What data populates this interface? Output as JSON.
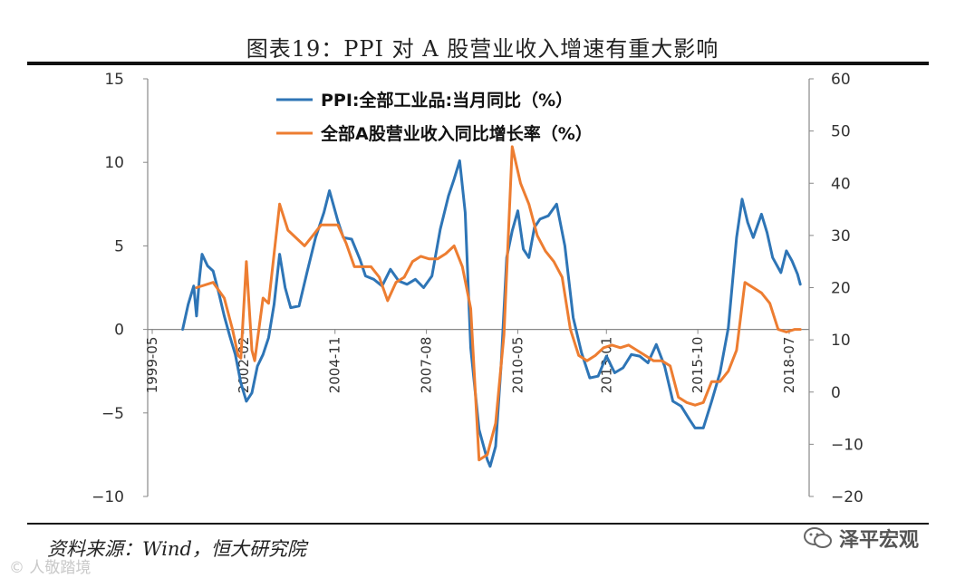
{
  "title": "图表19：PPI 对 A 股营业收入增速有重大影响",
  "source": "资料来源：Wind，恒大研究院",
  "watermark_left": "© 人敬踏境",
  "watermark_right": "泽平宏观",
  "watermark_icon": "wechat-icon",
  "chart_data": {
    "type": "line",
    "legend_position": "top-left",
    "y_left": {
      "min": -10,
      "max": 15,
      "ticks": [
        -10,
        -5,
        0,
        5,
        10,
        15
      ]
    },
    "y_right": {
      "min": -20,
      "max": 60,
      "ticks": [
        -20,
        -10,
        0,
        10,
        20,
        30,
        40,
        50,
        60
      ]
    },
    "x_ticks": [
      "1999-05",
      "2002-02",
      "2004-11",
      "2007-08",
      "2010-05",
      "2013-01",
      "2015-10",
      "2018-07"
    ],
    "series": [
      {
        "name": "PPI:全部工业品:当月同比（%）",
        "axis": "left",
        "color": "#2e75b6",
        "points": [
          [
            "2000-04",
            0.0
          ],
          [
            "2000-06",
            1.5
          ],
          [
            "2000-08",
            2.6
          ],
          [
            "2000-09",
            0.8
          ],
          [
            "2000-10",
            3.0
          ],
          [
            "2000-11",
            4.5
          ],
          [
            "2001-01",
            3.8
          ],
          [
            "2001-03",
            3.5
          ],
          [
            "2001-05",
            2.2
          ],
          [
            "2001-07",
            0.8
          ],
          [
            "2001-09",
            -0.4
          ],
          [
            "2001-11",
            -1.5
          ],
          [
            "2002-01",
            -3.2
          ],
          [
            "2002-03",
            -4.3
          ],
          [
            "2002-05",
            -3.8
          ],
          [
            "2002-07",
            -2.2
          ],
          [
            "2002-09",
            -1.5
          ],
          [
            "2002-11",
            -0.5
          ],
          [
            "2003-01",
            1.5
          ],
          [
            "2003-03",
            4.5
          ],
          [
            "2003-05",
            2.5
          ],
          [
            "2003-07",
            1.3
          ],
          [
            "2003-10",
            1.4
          ],
          [
            "2004-01",
            3.5
          ],
          [
            "2004-04",
            5.5
          ],
          [
            "2004-07",
            7.0
          ],
          [
            "2004-09",
            8.3
          ],
          [
            "2004-12",
            6.5
          ],
          [
            "2005-02",
            5.5
          ],
          [
            "2005-05",
            5.4
          ],
          [
            "2005-08",
            4.2
          ],
          [
            "2005-10",
            3.2
          ],
          [
            "2006-01",
            3.0
          ],
          [
            "2006-04",
            2.6
          ],
          [
            "2006-07",
            3.6
          ],
          [
            "2006-10",
            2.9
          ],
          [
            "2007-01",
            2.7
          ],
          [
            "2007-04",
            3.0
          ],
          [
            "2007-07",
            2.5
          ],
          [
            "2007-10",
            3.2
          ],
          [
            "2008-01",
            6.0
          ],
          [
            "2008-04",
            8.0
          ],
          [
            "2008-06",
            9.0
          ],
          [
            "2008-08",
            10.1
          ],
          [
            "2008-10",
            7.0
          ],
          [
            "2008-12",
            -1.1
          ],
          [
            "2009-03",
            -6.0
          ],
          [
            "2009-06",
            -7.8
          ],
          [
            "2009-07",
            -8.2
          ],
          [
            "2009-09",
            -7.0
          ],
          [
            "2009-11",
            -2.1
          ],
          [
            "2010-01",
            4.3
          ],
          [
            "2010-03",
            5.9
          ],
          [
            "2010-05",
            7.1
          ],
          [
            "2010-07",
            4.8
          ],
          [
            "2010-09",
            4.3
          ],
          [
            "2010-11",
            6.1
          ],
          [
            "2011-01",
            6.6
          ],
          [
            "2011-04",
            6.8
          ],
          [
            "2011-07",
            7.5
          ],
          [
            "2011-10",
            5.0
          ],
          [
            "2012-01",
            0.7
          ],
          [
            "2012-04",
            -1.4
          ],
          [
            "2012-07",
            -2.9
          ],
          [
            "2012-10",
            -2.8
          ],
          [
            "2013-01",
            -1.6
          ],
          [
            "2013-04",
            -2.6
          ],
          [
            "2013-07",
            -2.3
          ],
          [
            "2013-10",
            -1.5
          ],
          [
            "2014-01",
            -1.6
          ],
          [
            "2014-04",
            -2.0
          ],
          [
            "2014-07",
            -0.9
          ],
          [
            "2014-10",
            -2.2
          ],
          [
            "2015-01",
            -4.3
          ],
          [
            "2015-04",
            -4.6
          ],
          [
            "2015-07",
            -5.4
          ],
          [
            "2015-09",
            -5.9
          ],
          [
            "2015-12",
            -5.9
          ],
          [
            "2016-03",
            -4.3
          ],
          [
            "2016-06",
            -2.6
          ],
          [
            "2016-09",
            0.1
          ],
          [
            "2016-12",
            5.5
          ],
          [
            "2017-02",
            7.8
          ],
          [
            "2017-04",
            6.4
          ],
          [
            "2017-06",
            5.5
          ],
          [
            "2017-09",
            6.9
          ],
          [
            "2017-11",
            5.8
          ],
          [
            "2018-01",
            4.3
          ],
          [
            "2018-04",
            3.4
          ],
          [
            "2018-06",
            4.7
          ],
          [
            "2018-08",
            4.1
          ],
          [
            "2018-10",
            3.3
          ],
          [
            "2018-11",
            2.7
          ]
        ]
      },
      {
        "name": "全部A股营业收入同比增长率（%）",
        "axis": "right",
        "color": "#ed7d31",
        "points": [
          [
            "2000-09",
            20.0
          ],
          [
            "2001-03",
            21.0
          ],
          [
            "2001-07",
            18.0
          ],
          [
            "2001-10",
            12.0
          ],
          [
            "2001-12",
            7.0
          ],
          [
            "2002-01",
            6.5
          ],
          [
            "2002-03",
            25.0
          ],
          [
            "2002-05",
            8.0
          ],
          [
            "2002-06",
            6.0
          ],
          [
            "2002-09",
            18.0
          ],
          [
            "2002-11",
            17.0
          ],
          [
            "2003-03",
            36.0
          ],
          [
            "2003-06",
            31.0
          ],
          [
            "2003-12",
            28.0
          ],
          [
            "2004-03",
            30.0
          ],
          [
            "2004-06",
            32.0
          ],
          [
            "2004-12",
            32.0
          ],
          [
            "2005-03",
            28.5
          ],
          [
            "2005-06",
            24.0
          ],
          [
            "2005-12",
            24.0
          ],
          [
            "2006-03",
            22.0
          ],
          [
            "2006-06",
            17.5
          ],
          [
            "2006-09",
            21.0
          ],
          [
            "2006-12",
            22.0
          ],
          [
            "2007-03",
            25.0
          ],
          [
            "2007-06",
            26.0
          ],
          [
            "2007-09",
            25.5
          ],
          [
            "2007-12",
            25.5
          ],
          [
            "2008-03",
            26.5
          ],
          [
            "2008-06",
            28.0
          ],
          [
            "2008-09",
            24.0
          ],
          [
            "2008-12",
            16.0
          ],
          [
            "2009-03",
            -13.0
          ],
          [
            "2009-06",
            -12.0
          ],
          [
            "2009-09",
            -6.0
          ],
          [
            "2009-12",
            11.0
          ],
          [
            "2010-03",
            47.0
          ],
          [
            "2010-06",
            40.0
          ],
          [
            "2010-09",
            36.0
          ],
          [
            "2010-12",
            30.0
          ],
          [
            "2011-03",
            27.0
          ],
          [
            "2011-06",
            25.0
          ],
          [
            "2011-09",
            22.0
          ],
          [
            "2011-12",
            12.0
          ],
          [
            "2012-03",
            7.0
          ],
          [
            "2012-06",
            6.0
          ],
          [
            "2012-09",
            7.0
          ],
          [
            "2012-12",
            8.5
          ],
          [
            "2013-03",
            9.0
          ],
          [
            "2013-06",
            8.5
          ],
          [
            "2013-09",
            9.0
          ],
          [
            "2013-12",
            8.0
          ],
          [
            "2014-03",
            7.0
          ],
          [
            "2014-06",
            6.0
          ],
          [
            "2014-09",
            6.0
          ],
          [
            "2014-12",
            5.0
          ],
          [
            "2015-03",
            -1.0
          ],
          [
            "2015-06",
            -2.0
          ],
          [
            "2015-09",
            -2.5
          ],
          [
            "2015-12",
            -2.0
          ],
          [
            "2016-03",
            2.0
          ],
          [
            "2016-06",
            2.0
          ],
          [
            "2016-09",
            4.0
          ],
          [
            "2016-12",
            8.0
          ],
          [
            "2017-03",
            21.0
          ],
          [
            "2017-06",
            20.0
          ],
          [
            "2017-09",
            19.0
          ],
          [
            "2017-12",
            17.0
          ],
          [
            "2018-03",
            12.0
          ],
          [
            "2018-06",
            11.5
          ],
          [
            "2018-09",
            12.0
          ],
          [
            "2018-11",
            12.0
          ]
        ]
      }
    ]
  }
}
